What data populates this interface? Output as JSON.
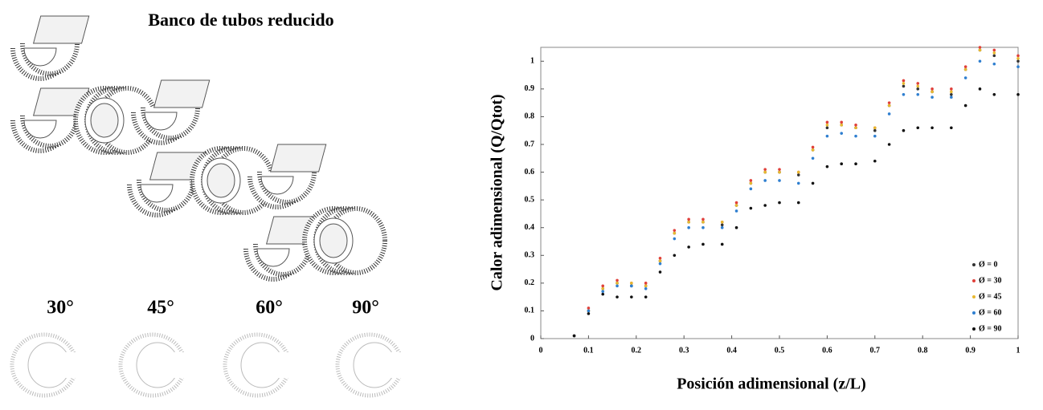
{
  "illustration": {
    "title": "Banco de tubos reducido",
    "angles": [
      "30°",
      "45°",
      "60°",
      "90°"
    ]
  },
  "chart_data": {
    "type": "scatter",
    "xlabel": "Posición adimensional  (z/L)",
    "ylabel": "Calor adimensional  (Q/Qtot)",
    "xlim": [
      0,
      1
    ],
    "xticks": [
      0,
      0.1,
      0.2,
      0.3,
      0.4,
      0.5,
      0.6,
      0.7,
      0.8,
      0.9,
      1
    ],
    "ylim": [
      0,
      1.05
    ],
    "yticks": [
      0,
      0.1,
      0.2,
      0.3,
      0.4,
      0.5,
      0.6,
      0.7,
      0.8,
      0.9,
      1
    ],
    "legend": "lower-right",
    "x": [
      0.07,
      0.1,
      0.13,
      0.16,
      0.19,
      0.22,
      0.25,
      0.28,
      0.31,
      0.34,
      0.38,
      0.41,
      0.44,
      0.47,
      0.5,
      0.54,
      0.57,
      0.6,
      0.63,
      0.66,
      0.7,
      0.73,
      0.76,
      0.79,
      0.82,
      0.86,
      0.89,
      0.92,
      0.95,
      1.0
    ],
    "series": [
      {
        "name": "Ø = 0",
        "color": "#333333",
        "values": [
          0.01,
          0.1,
          0.18,
          0.2,
          0.19,
          0.19,
          0.28,
          0.38,
          0.42,
          0.42,
          0.41,
          0.48,
          0.56,
          0.6,
          0.6,
          0.59,
          0.68,
          0.76,
          0.77,
          0.76,
          0.75,
          0.84,
          0.91,
          0.9,
          0.89,
          0.88,
          0.97,
          1.04,
          1.02,
          1.0
        ]
      },
      {
        "name": "Ø = 30",
        "color": "#e0403a",
        "values": [
          0.01,
          0.11,
          0.19,
          0.21,
          0.2,
          0.2,
          0.29,
          0.39,
          0.43,
          0.43,
          0.42,
          0.49,
          0.57,
          0.61,
          0.61,
          0.6,
          0.69,
          0.78,
          0.78,
          0.77,
          0.76,
          0.85,
          0.93,
          0.92,
          0.9,
          0.9,
          0.98,
          1.05,
          1.04,
          1.02
        ]
      },
      {
        "name": "Ø = 45",
        "color": "#e8b830",
        "values": [
          0.01,
          0.1,
          0.18,
          0.2,
          0.2,
          0.19,
          0.28,
          0.38,
          0.42,
          0.42,
          0.42,
          0.48,
          0.56,
          0.6,
          0.6,
          0.6,
          0.68,
          0.77,
          0.77,
          0.76,
          0.76,
          0.84,
          0.92,
          0.91,
          0.89,
          0.89,
          0.97,
          1.04,
          1.03,
          1.01
        ]
      },
      {
        "name": "Ø = 60",
        "color": "#2f7fd0",
        "values": [
          0.01,
          0.1,
          0.17,
          0.19,
          0.19,
          0.18,
          0.27,
          0.36,
          0.4,
          0.4,
          0.4,
          0.46,
          0.54,
          0.57,
          0.57,
          0.56,
          0.65,
          0.73,
          0.74,
          0.73,
          0.73,
          0.81,
          0.88,
          0.88,
          0.87,
          0.87,
          0.94,
          1.0,
          0.99,
          0.98
        ]
      },
      {
        "name": "Ø = 90",
        "color": "#111111",
        "values": [
          0.01,
          0.09,
          0.16,
          0.15,
          0.15,
          0.15,
          0.24,
          0.3,
          0.33,
          0.34,
          0.34,
          0.4,
          0.47,
          0.48,
          0.49,
          0.49,
          0.56,
          0.62,
          0.63,
          0.63,
          0.64,
          0.7,
          0.75,
          0.76,
          0.76,
          0.76,
          0.84,
          0.9,
          0.88,
          0.88
        ]
      }
    ]
  }
}
